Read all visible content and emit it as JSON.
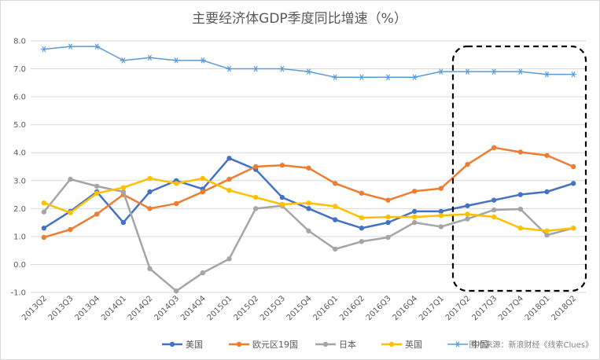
{
  "chart_data": {
    "type": "line",
    "title": "主要经济体GDP季度同比增速（%）",
    "xlabel": "",
    "ylabel": "",
    "ylim": [
      -1.0,
      8.0
    ],
    "yticks": [
      "8.0",
      "7.0",
      "6.0",
      "5.0",
      "4.0",
      "3.0",
      "2.0",
      "1.0",
      "0.0",
      "-1.0"
    ],
    "grid": true,
    "legend_position": "bottom",
    "categories": [
      "2013Q2",
      "2013Q3",
      "2013Q4",
      "2014Q1",
      "2014Q2",
      "2014Q3",
      "2014Q4",
      "2015Q1",
      "2015Q2",
      "2015Q3",
      "2015Q4",
      "2016Q1",
      "2016Q2",
      "2016Q3",
      "2016Q4",
      "2017Q1",
      "2017Q2",
      "2017Q3",
      "2017Q4",
      "2018Q1",
      "2018Q2"
    ],
    "series": [
      {
        "name": "美国",
        "color": "#4472C4",
        "marker": "circle",
        "values": [
          1.3,
          1.9,
          2.6,
          1.5,
          2.6,
          3.0,
          2.7,
          3.8,
          3.4,
          2.4,
          2.0,
          1.6,
          1.3,
          1.5,
          1.9,
          1.9,
          2.1,
          2.3,
          2.5,
          2.6,
          2.9
        ]
      },
      {
        "name": "欧元区19国",
        "color": "#ED7D31",
        "marker": "circle",
        "values": [
          0.97,
          1.25,
          1.8,
          2.5,
          2.0,
          2.18,
          2.6,
          3.05,
          3.5,
          3.55,
          3.45,
          2.9,
          2.55,
          2.3,
          2.62,
          2.72,
          3.58,
          4.18,
          4.02,
          3.9,
          3.5
        ]
      },
      {
        "name": "日本",
        "color": "#A5A5A5",
        "marker": "circle",
        "values": [
          1.88,
          3.05,
          2.8,
          2.6,
          -0.15,
          -0.95,
          -0.3,
          0.2,
          2.0,
          2.1,
          1.2,
          0.55,
          0.82,
          0.97,
          1.5,
          1.35,
          1.63,
          1.95,
          1.98,
          1.05,
          1.3
        ]
      },
      {
        "name": "英国",
        "color": "#FFC000",
        "marker": "circle",
        "values": [
          2.2,
          1.85,
          2.55,
          2.75,
          3.08,
          2.9,
          3.08,
          2.65,
          2.4,
          2.15,
          2.2,
          2.08,
          1.67,
          1.7,
          1.7,
          1.75,
          1.8,
          1.7,
          1.3,
          1.2,
          1.3
        ]
      },
      {
        "name": "中国",
        "color": "#5B9BD5",
        "marker": "star",
        "values": [
          7.7,
          7.8,
          7.8,
          7.3,
          7.4,
          7.3,
          7.3,
          7.0,
          7.0,
          7.0,
          6.9,
          6.7,
          6.7,
          6.7,
          6.7,
          6.9,
          6.9,
          6.9,
          6.9,
          6.8,
          6.8
        ]
      }
    ],
    "annotation": {
      "type": "dashed-box",
      "from_category": "2017Q2",
      "to_category": "2018Q2"
    }
  },
  "source_note": "图片来源：新浪财经《线索Clues》"
}
